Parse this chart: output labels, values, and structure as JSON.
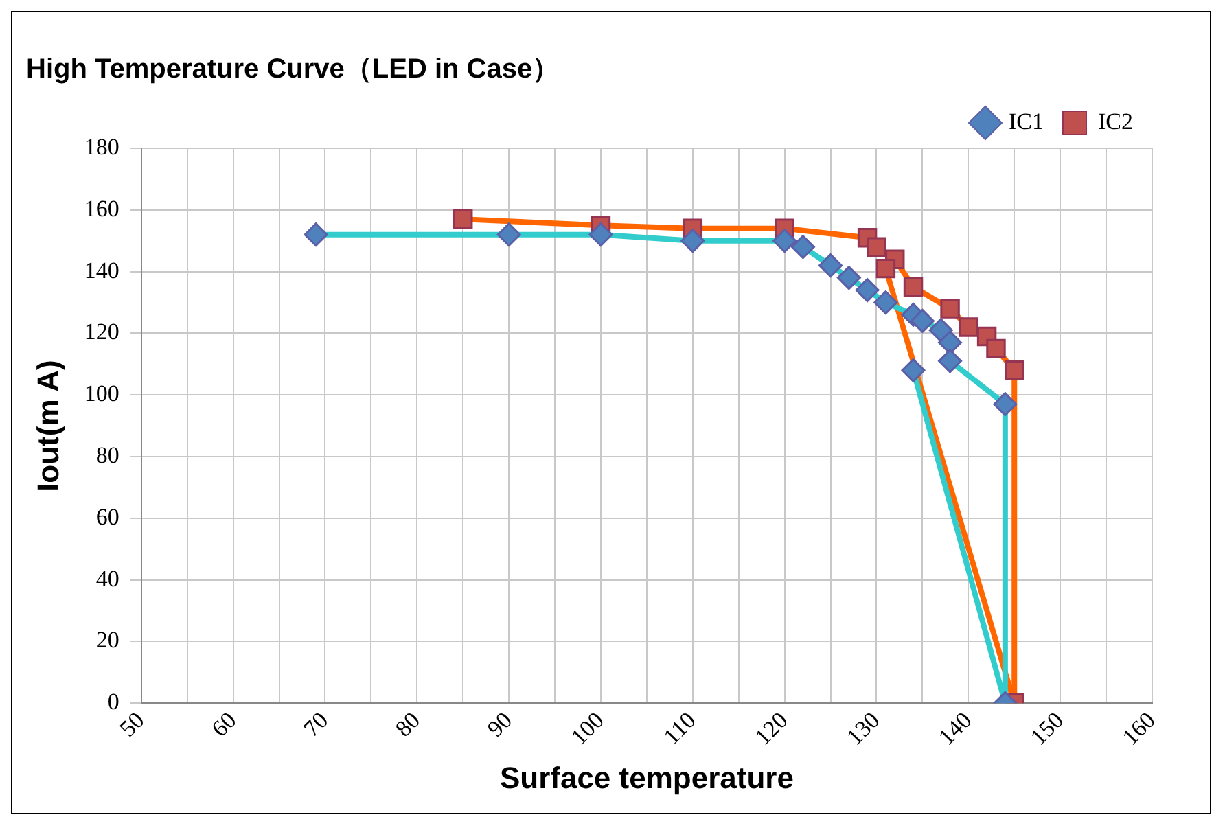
{
  "chart_data": {
    "type": "line",
    "title": "High Temperature Curve（LED in Case）",
    "xlabel": "Surface temperature",
    "ylabel": "Iout(m A)",
    "xlim": [
      50,
      160
    ],
    "xticks": [
      50,
      {
        "value": 55,
        "label": null
      },
      60,
      {
        "value": 65,
        "label": null
      },
      70,
      {
        "value": 75,
        "label": null
      },
      80,
      {
        "value": 85,
        "label": null
      },
      90,
      {
        "value": 95,
        "label": null
      },
      100,
      {
        "value": 105,
        "label": null
      },
      110,
      {
        "value": 115,
        "label": null
      },
      120,
      {
        "value": 125,
        "label": null
      },
      130,
      {
        "value": 135,
        "label": null
      },
      140,
      {
        "value": 145,
        "label": null
      },
      150,
      {
        "value": 155,
        "label": null
      },
      160
    ],
    "ylim": [
      0,
      180
    ],
    "yticks": [
      0,
      20,
      40,
      60,
      80,
      100,
      120,
      140,
      160,
      180
    ],
    "grid": true,
    "legend": "top right",
    "series": [
      {
        "name": "IC1",
        "color": "#33cccc",
        "marker": "diamond",
        "x": [
          69,
          90,
          100,
          110,
          120,
          122,
          125,
          127,
          129,
          131,
          134,
          135,
          137,
          138,
          138,
          144,
          144,
          134
        ],
        "values": [
          152,
          152,
          152,
          150,
          150,
          148,
          142,
          138,
          134,
          130,
          126,
          124,
          121,
          117,
          111,
          97,
          0,
          108
        ]
      },
      {
        "name": "IC2",
        "color": "#ff6600",
        "marker": "square",
        "x": [
          85,
          100,
          110,
          120,
          129,
          130,
          132,
          134,
          138,
          140,
          142,
          143,
          145,
          145,
          131
        ],
        "values": [
          157,
          155,
          154,
          154,
          151,
          148,
          144,
          135,
          128,
          122,
          119,
          115,
          108,
          0,
          141
        ]
      }
    ]
  }
}
